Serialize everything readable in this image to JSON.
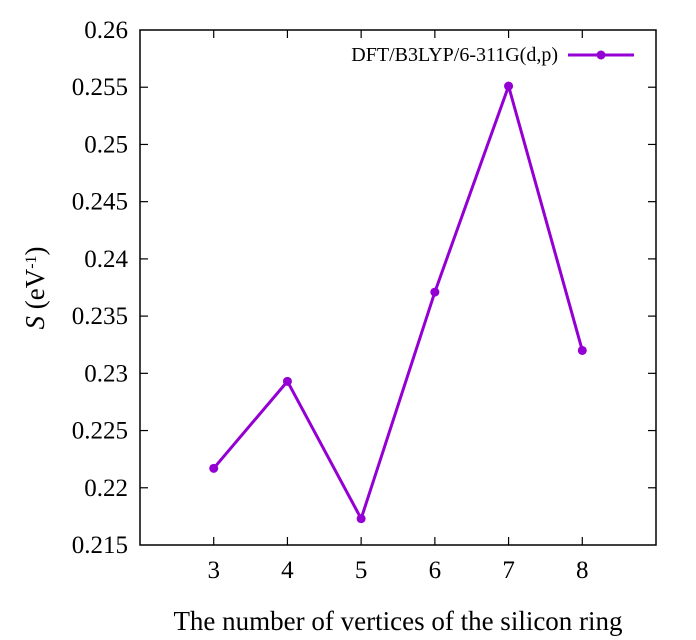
{
  "chart_data": {
    "type": "line",
    "title": "",
    "xlabel": "The number of vertices of the silicon ring",
    "ylabel": {
      "symbol": "S",
      "unit_prefix": " (eV",
      "exponent": "-1",
      "unit_suffix": ")"
    },
    "x": [
      3,
      4,
      5,
      6,
      7,
      8
    ],
    "x_ticks": [
      "3",
      "4",
      "5",
      "6",
      "7",
      "8"
    ],
    "xlim": [
      2,
      9
    ],
    "ylim": [
      0.215,
      0.26
    ],
    "y_ticks": [
      "0.215",
      "0.22",
      "0.225",
      "0.23",
      "0.235",
      "0.24",
      "0.245",
      "0.25",
      "0.255",
      "0.26"
    ],
    "grid": false,
    "legend_position": "top-right",
    "series": [
      {
        "name": "DFT/B3LYP/6-311G(d,p)",
        "color": "#9400d3",
        "marker": "circle",
        "values": [
          0.2217,
          0.2293,
          0.2173,
          0.2371,
          0.2551,
          0.232
        ]
      }
    ]
  }
}
